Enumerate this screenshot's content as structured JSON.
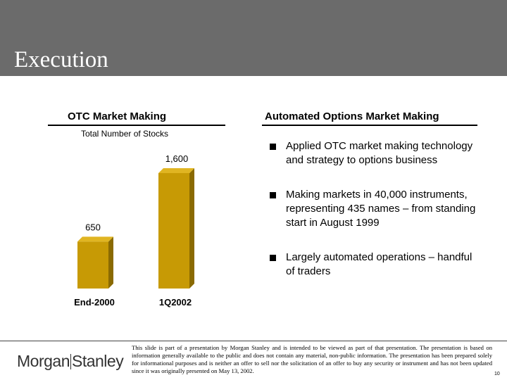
{
  "header": {
    "title": "Execution"
  },
  "left": {
    "title": "OTC Market Making",
    "subtitle": "Total Number of Stocks"
  },
  "right": {
    "title": "Automated Options Market Making",
    "bullets": [
      "Applied OTC market making technology and strategy to options business",
      "Making markets in 40,000 instruments, representing 435 names – from standing start in August 1999",
      "Largely automated operations – handful of traders"
    ]
  },
  "chart_data": {
    "type": "bar",
    "title": "Total Number of Stocks",
    "categories": [
      "End-2000",
      "1Q2002"
    ],
    "values": [
      650,
      1600
    ],
    "value_labels": [
      "650",
      "1,600"
    ],
    "ylim": [
      0,
      1600
    ],
    "grid": false,
    "bar_color": "#c79a05"
  },
  "footer": {
    "logo": {
      "part1": "Morgan",
      "part2": "Stanley"
    },
    "disclaimer": "This slide is part of a presentation by Morgan Stanley and is intended to be viewed as part of that presentation. The presentation is based on information generally available to the public and does not contain any material, non-public information. The presentation has been prepared solely for informational purposes and is neither an offer to sell nor the solicitation of an offer to buy any security or instrument and has not been updated since it was originally presented on May 13, 2002.",
    "page_number": "10"
  },
  "colors": {
    "header_bg": "#6b6b6b",
    "bar": "#c79a05",
    "bar_dark": "#8a6a02"
  }
}
